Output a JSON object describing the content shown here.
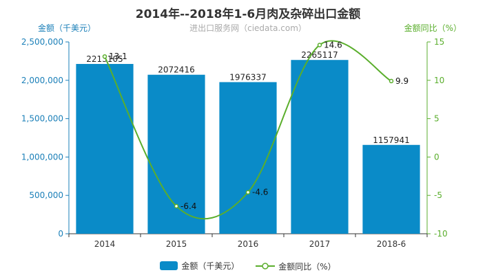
{
  "title": "2014年--2018年1-6月肉及杂碎出口金额",
  "subtitle": "进出口服务网（ciedata.com）",
  "left_axis_label": "金额（千美元）",
  "right_axis_label": "金额同比（%）",
  "colors": {
    "bar": "#0a8bc8",
    "line": "#5aae2c",
    "left_axis": "#1a7fb8",
    "right_axis": "#5aae2c"
  },
  "chart_data": {
    "type": "bar",
    "categories": [
      "2014",
      "2015",
      "2016",
      "2017",
      "2018-6"
    ],
    "series": [
      {
        "name": "金额（千美元）",
        "type": "bar",
        "axis": "left",
        "values": [
          2213105,
          2072416,
          1976337,
          2265117,
          1157941
        ],
        "labels": [
          "2213105",
          "2072416",
          "1976337",
          "2265117",
          "1157941"
        ]
      },
      {
        "name": "金额同比（%）",
        "type": "line",
        "axis": "right",
        "values": [
          13.1,
          -6.4,
          -4.6,
          14.6,
          9.9
        ],
        "labels": [
          "13.1",
          "-6.4",
          "-4.6",
          "14.6",
          "9.9"
        ]
      }
    ],
    "y_left": {
      "min": 0,
      "max": 2500000,
      "ticks": [
        0,
        500000,
        1000000,
        1500000,
        2000000,
        2500000
      ],
      "tick_labels": [
        "0",
        "500,000",
        "1,000,000",
        "1,500,000",
        "2,000,000",
        "2,500,000"
      ]
    },
    "y_right": {
      "min": -10,
      "max": 15,
      "ticks": [
        -10,
        -5,
        0,
        5,
        10,
        15
      ],
      "tick_labels": [
        "-10",
        "-5",
        "0",
        "5",
        "10",
        "15"
      ]
    },
    "grid": false,
    "legend_position": "bottom"
  }
}
